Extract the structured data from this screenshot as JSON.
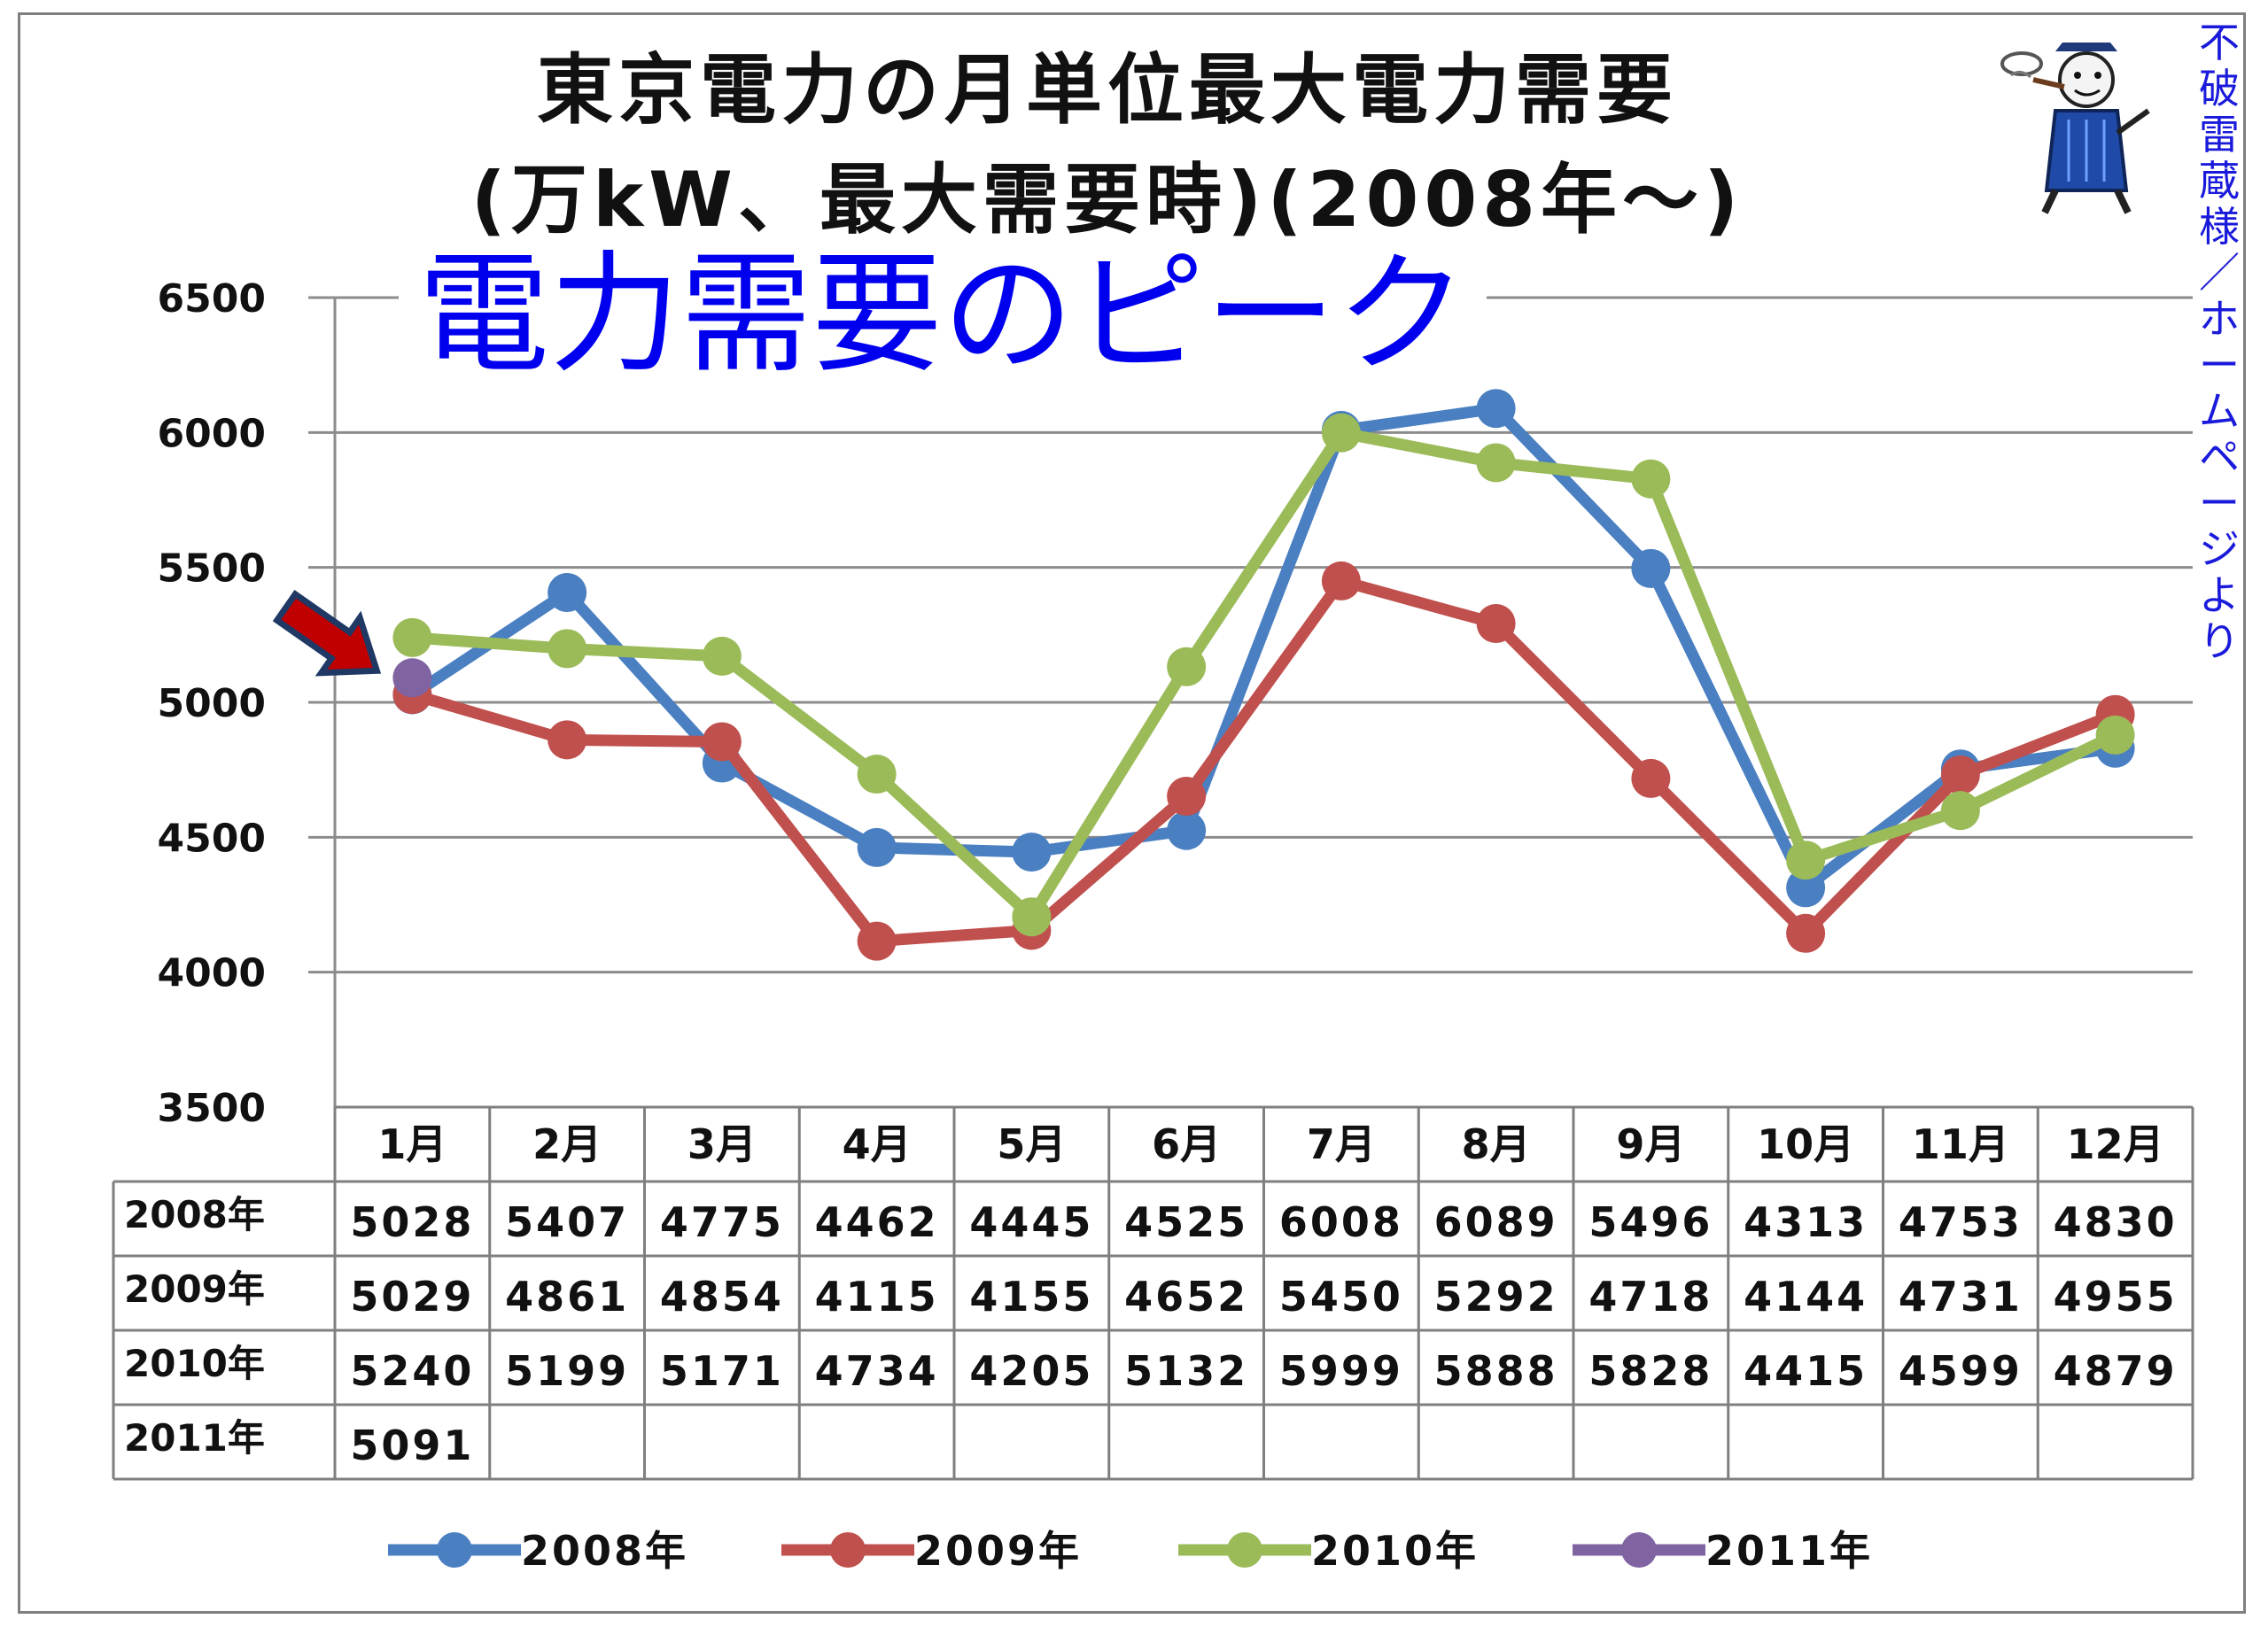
{
  "title": {
    "line1": "東京電力の月単位最大電力需要",
    "line2": "(万kW、最大需要時)(2008年～)"
  },
  "overlay_label": "電力需要のピーク",
  "side_credit": "不破雷蔵様／ホームページより",
  "colors": {
    "2008年": "#4a7fc1",
    "2009年": "#c0504d",
    "2010年": "#9bbb59",
    "2011年": "#8064a2",
    "arrow": "#c00000",
    "arrow_outline": "#1f3864",
    "credit": "#1a1adb",
    "overlay": "#0000ee"
  },
  "chart_data": {
    "type": "line",
    "categories": [
      "1月",
      "2月",
      "3月",
      "4月",
      "5月",
      "6月",
      "7月",
      "8月",
      "9月",
      "10月",
      "11月",
      "12月"
    ],
    "series": [
      {
        "name": "2008年",
        "values": [
          5028,
          5407,
          4775,
          4462,
          4445,
          4525,
          6008,
          6089,
          5496,
          4313,
          4753,
          4830
        ]
      },
      {
        "name": "2009年",
        "values": [
          5029,
          4861,
          4854,
          4115,
          4155,
          4652,
          5450,
          5292,
          4718,
          4144,
          4731,
          4955
        ]
      },
      {
        "name": "2010年",
        "values": [
          5240,
          5199,
          5171,
          4734,
          4205,
          5132,
          5999,
          5888,
          5828,
          4415,
          4599,
          4879
        ]
      },
      {
        "name": "2011年",
        "values": [
          5091,
          null,
          null,
          null,
          null,
          null,
          null,
          null,
          null,
          null,
          null,
          null
        ]
      }
    ],
    "y_ticks": [
      3500,
      4000,
      4500,
      5000,
      5500,
      6000,
      6500
    ],
    "ylim": [
      3500,
      6500
    ],
    "grid": true,
    "legend": "bottom",
    "data_table": true,
    "table_rows": [
      {
        "label": "2008年",
        "cells": [
          "5028",
          "5407",
          "4775",
          "4462",
          "4445",
          "4525",
          "6008",
          "6089",
          "5496",
          "4313",
          "4753",
          "4830"
        ]
      },
      {
        "label": "2009年",
        "cells": [
          "5029",
          "4861",
          "4854",
          "4115",
          "4155",
          "4652",
          "5450",
          "5292",
          "4718",
          "4144",
          "4731",
          "4955"
        ]
      },
      {
        "label": "2010年",
        "cells": [
          "5240",
          "5199",
          "5171",
          "4734",
          "4205",
          "5132",
          "5999",
          "5888",
          "5828",
          "4415",
          "4599",
          "4879"
        ]
      },
      {
        "label": "2011年",
        "cells": [
          "5091",
          "",
          "",
          "",
          "",
          "",
          "",
          "",
          "",
          "",
          "",
          ""
        ]
      }
    ]
  }
}
